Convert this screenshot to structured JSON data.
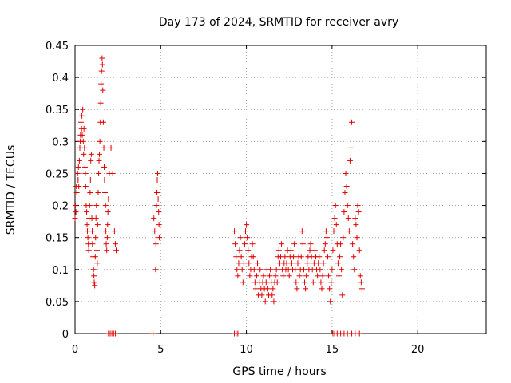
{
  "chart_data": {
    "type": "scatter",
    "title": "Day 173 of 2024, SRMTID for receiver avry",
    "xlabel": "GPS time / hours",
    "ylabel": "SRMTID / TECUs",
    "xlim": [
      0,
      24
    ],
    "ylim": [
      0,
      0.45
    ],
    "xticks": [
      0,
      5,
      10,
      15,
      20
    ],
    "xtick_labels": [
      "0",
      "5",
      "10",
      "15",
      "20"
    ],
    "yticks": [
      0,
      0.05,
      0.1,
      0.15,
      0.2,
      0.25,
      0.3,
      0.35,
      0.4,
      0.45
    ],
    "ytick_labels": [
      "0",
      "0.05",
      "0.1",
      "0.15",
      "0.2",
      "0.25",
      "0.3",
      "0.35",
      "0.4",
      "0.45"
    ],
    "grid": true,
    "marker": "plus",
    "color": "#e00000",
    "series": [
      {
        "name": "SRMTID",
        "points": [
          [
            0.0,
            0.18
          ],
          [
            0.02,
            0.2
          ],
          [
            0.05,
            0.19
          ],
          [
            0.08,
            0.23
          ],
          [
            0.1,
            0.22
          ],
          [
            0.12,
            0.24
          ],
          [
            0.15,
            0.25
          ],
          [
            0.18,
            0.24
          ],
          [
            0.2,
            0.26
          ],
          [
            0.22,
            0.23
          ],
          [
            0.25,
            0.27
          ],
          [
            0.28,
            0.29
          ],
          [
            0.3,
            0.3
          ],
          [
            0.32,
            0.31
          ],
          [
            0.35,
            0.33
          ],
          [
            0.38,
            0.32
          ],
          [
            0.4,
            0.34
          ],
          [
            0.42,
            0.31
          ],
          [
            0.45,
            0.35
          ],
          [
            0.48,
            0.3
          ],
          [
            0.5,
            0.28
          ],
          [
            0.52,
            0.32
          ],
          [
            0.55,
            0.29
          ],
          [
            0.58,
            0.26
          ],
          [
            0.6,
            0.25
          ],
          [
            0.62,
            0.23
          ],
          [
            0.65,
            0.2
          ],
          [
            0.68,
            0.19
          ],
          [
            0.7,
            0.17
          ],
          [
            0.72,
            0.16
          ],
          [
            0.75,
            0.15
          ],
          [
            0.78,
            0.14
          ],
          [
            0.8,
            0.13
          ],
          [
            0.82,
            0.18
          ],
          [
            0.85,
            0.2
          ],
          [
            0.88,
            0.22
          ],
          [
            0.9,
            0.24
          ],
          [
            0.92,
            0.27
          ],
          [
            0.95,
            0.28
          ],
          [
            0.98,
            0.18
          ],
          [
            1.0,
            0.16
          ],
          [
            1.02,
            0.14
          ],
          [
            1.05,
            0.12
          ],
          [
            1.08,
            0.1
          ],
          [
            1.1,
            0.09
          ],
          [
            1.12,
            0.08
          ],
          [
            1.15,
            0.075
          ],
          [
            1.18,
            0.12
          ],
          [
            1.2,
            0.15
          ],
          [
            1.22,
            0.18
          ],
          [
            1.25,
            0.2
          ],
          [
            1.28,
            0.13
          ],
          [
            1.3,
            0.11
          ],
          [
            1.32,
            0.17
          ],
          [
            1.35,
            0.22
          ],
          [
            1.38,
            0.25
          ],
          [
            1.4,
            0.27
          ],
          [
            1.42,
            0.28
          ],
          [
            1.45,
            0.3
          ],
          [
            1.48,
            0.33
          ],
          [
            1.5,
            0.36
          ],
          [
            1.52,
            0.39
          ],
          [
            1.55,
            0.41
          ],
          [
            1.58,
            0.43
          ],
          [
            1.6,
            0.42
          ],
          [
            1.62,
            0.38
          ],
          [
            1.65,
            0.33
          ],
          [
            1.68,
            0.29
          ],
          [
            1.7,
            0.26
          ],
          [
            1.72,
            0.24
          ],
          [
            1.75,
            0.22
          ],
          [
            1.78,
            0.2
          ],
          [
            1.8,
            0.16
          ],
          [
            1.82,
            0.14
          ],
          [
            1.85,
            0.13
          ],
          [
            1.88,
            0.15
          ],
          [
            1.9,
            0.17
          ],
          [
            1.92,
            0.19
          ],
          [
            1.95,
            0.21
          ],
          [
            2.0,
            0.25
          ],
          [
            2.1,
            0.29
          ],
          [
            2.2,
            0.25
          ],
          [
            2.3,
            0.16
          ],
          [
            2.35,
            0.14
          ],
          [
            2.4,
            0.13
          ],
          [
            4.6,
            0.18
          ],
          [
            4.65,
            0.16
          ],
          [
            4.7,
            0.1
          ],
          [
            4.72,
            0.14
          ],
          [
            4.75,
            0.2
          ],
          [
            4.78,
            0.22
          ],
          [
            4.8,
            0.24
          ],
          [
            4.82,
            0.25
          ],
          [
            4.85,
            0.21
          ],
          [
            4.88,
            0.19
          ],
          [
            4.9,
            0.17
          ],
          [
            4.92,
            0.15
          ],
          [
            9.3,
            0.16
          ],
          [
            9.35,
            0.14
          ],
          [
            9.4,
            0.12
          ],
          [
            9.45,
            0.1
          ],
          [
            9.5,
            0.09
          ],
          [
            9.55,
            0.11
          ],
          [
            9.6,
            0.13
          ],
          [
            9.65,
            0.15
          ],
          [
            9.7,
            0.12
          ],
          [
            9.75,
            0.1
          ],
          [
            9.8,
            0.08
          ],
          [
            9.85,
            0.11
          ],
          [
            9.9,
            0.14
          ],
          [
            9.95,
            0.16
          ],
          [
            10.0,
            0.17
          ],
          [
            10.05,
            0.15
          ],
          [
            10.1,
            0.13
          ],
          [
            10.15,
            0.11
          ],
          [
            10.2,
            0.09
          ],
          [
            10.25,
            0.1
          ],
          [
            10.3,
            0.12
          ],
          [
            10.35,
            0.14
          ],
          [
            10.4,
            0.12
          ],
          [
            10.45,
            0.1
          ],
          [
            10.5,
            0.08
          ],
          [
            10.55,
            0.07
          ],
          [
            10.6,
            0.09
          ],
          [
            10.65,
            0.11
          ],
          [
            10.7,
            0.06
          ],
          [
            10.75,
            0.08
          ],
          [
            10.8,
            0.1
          ],
          [
            10.85,
            0.07
          ],
          [
            10.9,
            0.06
          ],
          [
            10.95,
            0.08
          ],
          [
            11.0,
            0.09
          ],
          [
            11.05,
            0.07
          ],
          [
            11.1,
            0.05
          ],
          [
            11.15,
            0.08
          ],
          [
            11.2,
            0.1
          ],
          [
            11.25,
            0.07
          ],
          [
            11.3,
            0.06
          ],
          [
            11.35,
            0.09
          ],
          [
            11.4,
            0.1
          ],
          [
            11.45,
            0.08
          ],
          [
            11.5,
            0.06
          ],
          [
            11.55,
            0.07
          ],
          [
            11.6,
            0.05
          ],
          [
            11.65,
            0.08
          ],
          [
            11.7,
            0.09
          ],
          [
            11.75,
            0.1
          ],
          [
            11.8,
            0.08
          ],
          [
            11.85,
            0.12
          ],
          [
            11.9,
            0.13
          ],
          [
            11.95,
            0.11
          ],
          [
            12.0,
            0.12
          ],
          [
            12.05,
            0.14
          ],
          [
            12.1,
            0.1
          ],
          [
            12.15,
            0.09
          ],
          [
            12.2,
            0.11
          ],
          [
            12.25,
            0.12
          ],
          [
            12.3,
            0.1
          ],
          [
            12.35,
            0.11
          ],
          [
            12.4,
            0.13
          ],
          [
            12.45,
            0.1
          ],
          [
            12.5,
            0.09
          ],
          [
            12.55,
            0.12
          ],
          [
            12.6,
            0.13
          ],
          [
            12.65,
            0.11
          ],
          [
            12.7,
            0.1
          ],
          [
            12.75,
            0.12
          ],
          [
            12.8,
            0.14
          ],
          [
            12.85,
            0.1
          ],
          [
            12.9,
            0.08
          ],
          [
            12.95,
            0.07
          ],
          [
            13.0,
            0.11
          ],
          [
            13.05,
            0.12
          ],
          [
            13.1,
            0.09
          ],
          [
            13.15,
            0.1
          ],
          [
            13.2,
            0.12
          ],
          [
            13.25,
            0.16
          ],
          [
            13.3,
            0.14
          ],
          [
            13.35,
            0.1
          ],
          [
            13.4,
            0.08
          ],
          [
            13.45,
            0.07
          ],
          [
            13.5,
            0.09
          ],
          [
            13.55,
            0.11
          ],
          [
            13.6,
            0.12
          ],
          [
            13.65,
            0.1
          ],
          [
            13.7,
            0.13
          ],
          [
            13.75,
            0.14
          ],
          [
            13.8,
            0.12
          ],
          [
            13.85,
            0.1
          ],
          [
            13.9,
            0.08
          ],
          [
            13.95,
            0.11
          ],
          [
            14.0,
            0.13
          ],
          [
            14.05,
            0.12
          ],
          [
            14.1,
            0.1
          ],
          [
            14.15,
            0.09
          ],
          [
            14.2,
            0.11
          ],
          [
            14.25,
            0.12
          ],
          [
            14.3,
            0.1
          ],
          [
            14.35,
            0.08
          ],
          [
            14.4,
            0.07
          ],
          [
            14.45,
            0.09
          ],
          [
            14.5,
            0.11
          ],
          [
            14.55,
            0.13
          ],
          [
            14.6,
            0.14
          ],
          [
            14.65,
            0.16
          ],
          [
            14.7,
            0.15
          ],
          [
            14.75,
            0.12
          ],
          [
            14.8,
            0.09
          ],
          [
            14.85,
            0.07
          ],
          [
            14.9,
            0.05
          ],
          [
            14.95,
            0.08
          ],
          [
            15.0,
            0.1
          ],
          [
            15.05,
            0.13
          ],
          [
            15.1,
            0.16
          ],
          [
            15.15,
            0.18
          ],
          [
            15.2,
            0.2
          ],
          [
            15.25,
            0.17
          ],
          [
            15.3,
            0.14
          ],
          [
            15.35,
            0.11
          ],
          [
            15.4,
            0.09
          ],
          [
            15.45,
            0.12
          ],
          [
            15.5,
            0.14
          ],
          [
            15.55,
            0.1
          ],
          [
            15.6,
            0.06
          ],
          [
            15.65,
            0.15
          ],
          [
            15.7,
            0.19
          ],
          [
            15.75,
            0.22
          ],
          [
            15.8,
            0.25
          ],
          [
            15.85,
            0.23
          ],
          [
            15.9,
            0.2
          ],
          [
            15.95,
            0.18
          ],
          [
            16.0,
            0.16
          ],
          [
            16.05,
            0.27
          ],
          [
            16.1,
            0.29
          ],
          [
            16.15,
            0.33
          ],
          [
            16.2,
            0.14
          ],
          [
            16.25,
            0.12
          ],
          [
            16.3,
            0.1
          ],
          [
            16.35,
            0.18
          ],
          [
            16.4,
            0.17
          ],
          [
            16.45,
            0.15
          ],
          [
            16.5,
            0.2
          ],
          [
            16.55,
            0.19
          ],
          [
            16.6,
            0.13
          ],
          [
            16.65,
            0.09
          ],
          [
            16.7,
            0.08
          ],
          [
            16.75,
            0.07
          ],
          [
            1.95,
            0.0
          ],
          [
            2.05,
            0.0
          ],
          [
            2.15,
            0.0
          ],
          [
            2.25,
            0.0
          ],
          [
            2.35,
            0.0
          ],
          [
            4.55,
            0.0
          ],
          [
            9.3,
            0.0
          ],
          [
            9.4,
            0.0
          ],
          [
            9.5,
            0.0
          ],
          [
            15.05,
            0.0
          ],
          [
            15.15,
            0.0
          ],
          [
            15.3,
            0.0
          ],
          [
            15.5,
            0.0
          ],
          [
            15.7,
            0.0
          ],
          [
            15.9,
            0.0
          ],
          [
            16.15,
            0.0
          ],
          [
            16.35,
            0.0
          ],
          [
            16.6,
            0.0
          ]
        ]
      }
    ]
  }
}
